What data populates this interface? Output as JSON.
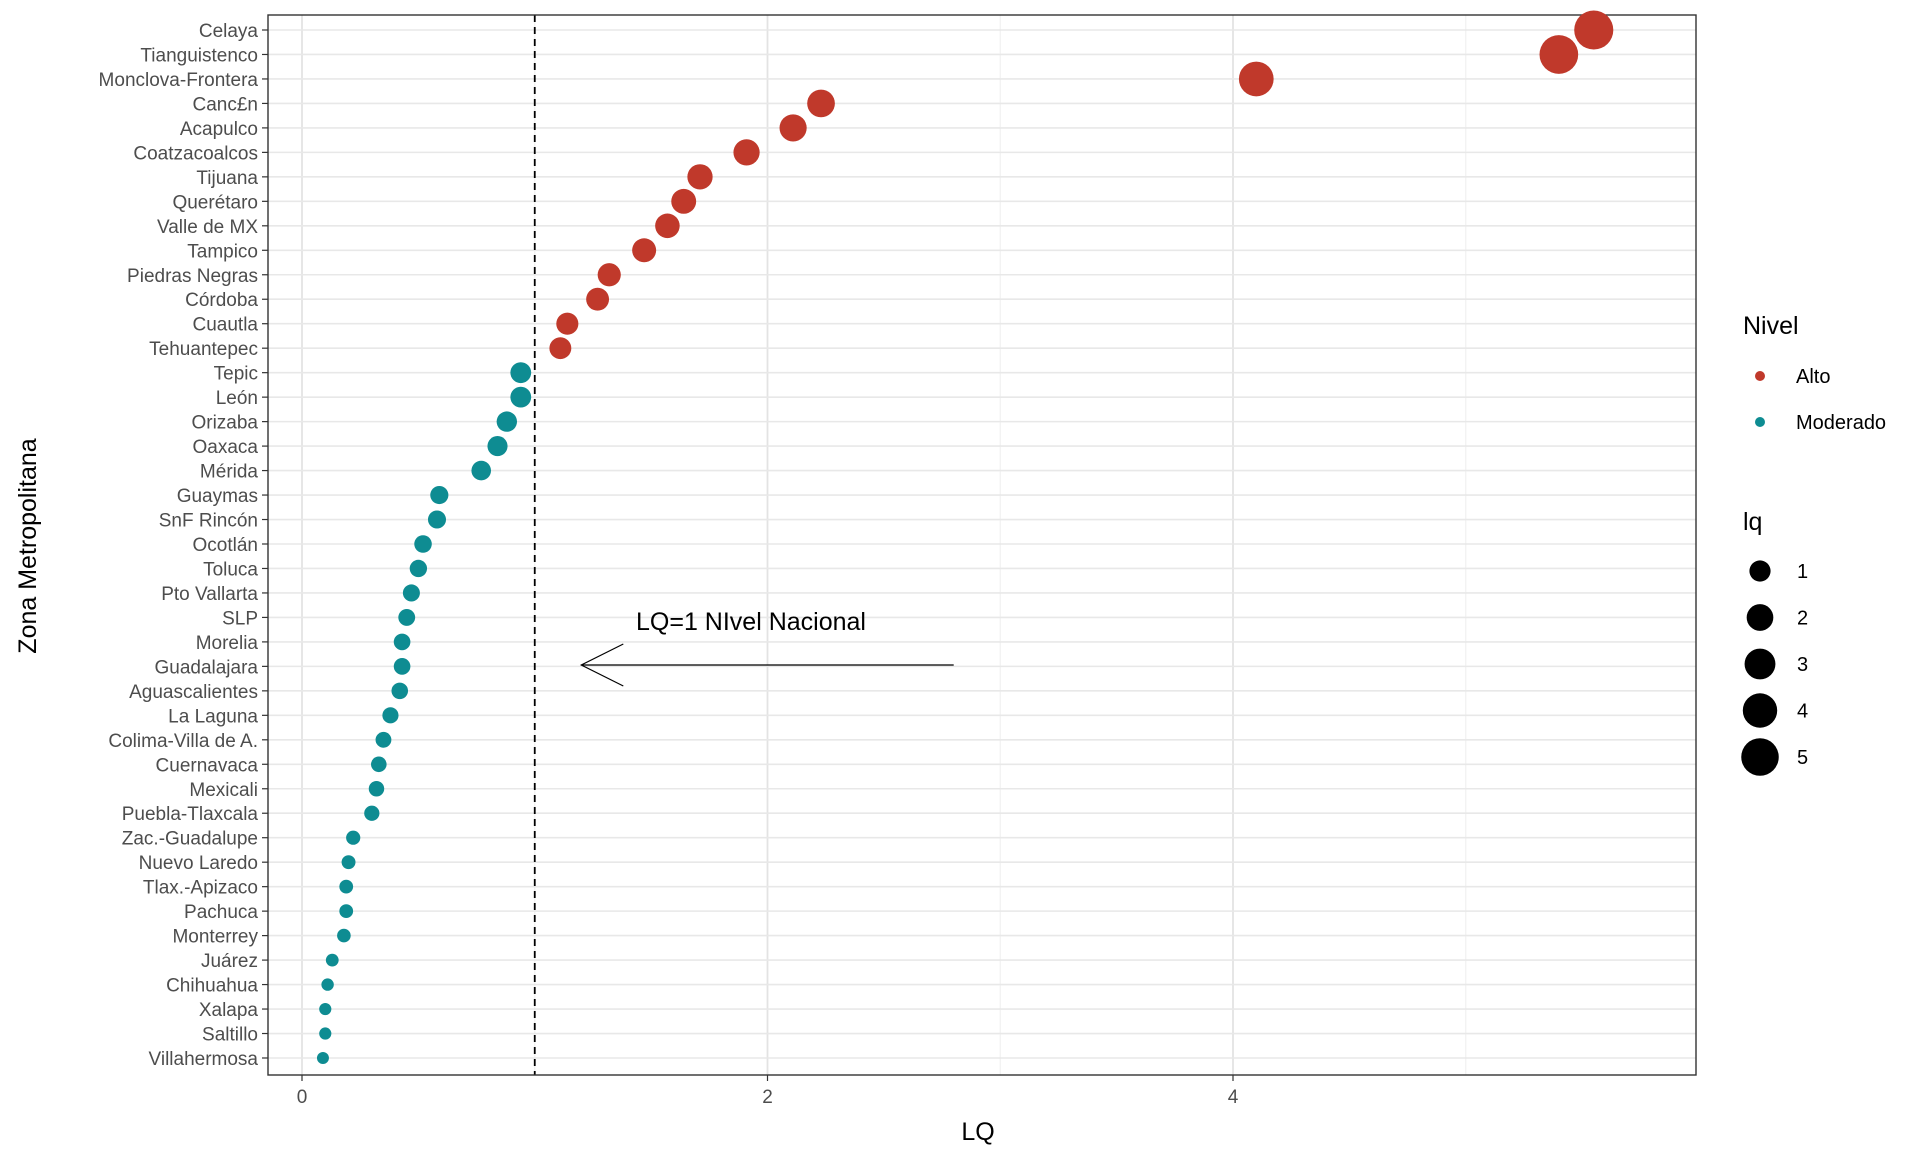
{
  "chart_data": {
    "type": "scatter",
    "xlabel": "LQ",
    "ylabel": "Zona Metropolitana",
    "xlim": [
      -0.15,
      5.8
    ],
    "x_ticks": [
      0,
      2,
      4
    ],
    "grid": true,
    "reference_line": {
      "x": 1.0,
      "style": "dashed"
    },
    "annotation": {
      "text": "LQ=1 NIvel Nacional",
      "arrow_from": 2.8,
      "arrow_to": 1.2
    },
    "colors": {
      "Alto": "#C0392B",
      "Moderado": "#0E8C92"
    },
    "legend": {
      "color_title": "Nivel",
      "color_items": [
        "Alto",
        "Moderado"
      ],
      "size_title": "lq",
      "size_items": [
        1,
        2,
        3,
        4,
        5
      ],
      "placement": "right"
    },
    "categories": [
      "Celaya",
      "Tianguistenco",
      "Monclova-Frontera",
      "Canc£n",
      "Acapulco",
      "Coatzacoalcos",
      "Tijuana",
      "Querétaro",
      "Valle de MX",
      "Tampico",
      "Piedras Negras",
      "Córdoba",
      "Cuautla",
      "Tehuantepec",
      "Tepic",
      "León",
      "Orizaba",
      "Oaxaca",
      "Mérida",
      "Guaymas",
      "SnF Rincón",
      "Ocotlán",
      "Toluca",
      "Pto Vallarta",
      "SLP",
      "Morelia",
      "Guadalajara",
      "Aguascalientes",
      "La Laguna",
      "Colima-Villa de A.",
      "Cuernavaca",
      "Mexicali",
      "Puebla-Tlaxcala",
      "Zac.-Guadalupe",
      "Nuevo Laredo",
      "Tlax.-Apizaco",
      "Pachuca",
      "Monterrey",
      "Juárez",
      "Chihuahua",
      "Xalapa",
      "Saltillo",
      "Villahermosa"
    ],
    "points": [
      {
        "name": "Celaya",
        "x": 5.55,
        "nivel": "Alto"
      },
      {
        "name": "Tianguistenco",
        "x": 5.4,
        "nivel": "Alto"
      },
      {
        "name": "Monclova-Frontera",
        "x": 4.1,
        "nivel": "Alto"
      },
      {
        "name": "Canc£n",
        "x": 2.23,
        "nivel": "Alto"
      },
      {
        "name": "Acapulco",
        "x": 2.11,
        "nivel": "Alto"
      },
      {
        "name": "Coatzacoalcos",
        "x": 1.91,
        "nivel": "Alto"
      },
      {
        "name": "Tijuana",
        "x": 1.71,
        "nivel": "Alto"
      },
      {
        "name": "Querétaro",
        "x": 1.64,
        "nivel": "Alto"
      },
      {
        "name": "Valle de MX",
        "x": 1.57,
        "nivel": "Alto"
      },
      {
        "name": "Tampico",
        "x": 1.47,
        "nivel": "Alto"
      },
      {
        "name": "Piedras Negras",
        "x": 1.32,
        "nivel": "Alto"
      },
      {
        "name": "Córdoba",
        "x": 1.27,
        "nivel": "Alto"
      },
      {
        "name": "Cuautla",
        "x": 1.14,
        "nivel": "Alto"
      },
      {
        "name": "Tehuantepec",
        "x": 1.11,
        "nivel": "Alto"
      },
      {
        "name": "Tepic",
        "x": 0.94,
        "nivel": "Moderado"
      },
      {
        "name": "León",
        "x": 0.94,
        "nivel": "Moderado"
      },
      {
        "name": "Orizaba",
        "x": 0.88,
        "nivel": "Moderado"
      },
      {
        "name": "Oaxaca",
        "x": 0.84,
        "nivel": "Moderado"
      },
      {
        "name": "Mérida",
        "x": 0.77,
        "nivel": "Moderado"
      },
      {
        "name": "Guaymas",
        "x": 0.59,
        "nivel": "Moderado"
      },
      {
        "name": "SnF Rincón",
        "x": 0.58,
        "nivel": "Moderado"
      },
      {
        "name": "Ocotlán",
        "x": 0.52,
        "nivel": "Moderado"
      },
      {
        "name": "Toluca",
        "x": 0.5,
        "nivel": "Moderado"
      },
      {
        "name": "Pto Vallarta",
        "x": 0.47,
        "nivel": "Moderado"
      },
      {
        "name": "SLP",
        "x": 0.45,
        "nivel": "Moderado"
      },
      {
        "name": "Morelia",
        "x": 0.43,
        "nivel": "Moderado"
      },
      {
        "name": "Guadalajara",
        "x": 0.43,
        "nivel": "Moderado"
      },
      {
        "name": "Aguascalientes",
        "x": 0.42,
        "nivel": "Moderado"
      },
      {
        "name": "La Laguna",
        "x": 0.38,
        "nivel": "Moderado"
      },
      {
        "name": "Colima-Villa de A.",
        "x": 0.35,
        "nivel": "Moderado"
      },
      {
        "name": "Cuernavaca",
        "x": 0.33,
        "nivel": "Moderado"
      },
      {
        "name": "Mexicali",
        "x": 0.32,
        "nivel": "Moderado"
      },
      {
        "name": "Puebla-Tlaxcala",
        "x": 0.3,
        "nivel": "Moderado"
      },
      {
        "name": "Zac.-Guadalupe",
        "x": 0.22,
        "nivel": "Moderado"
      },
      {
        "name": "Nuevo Laredo",
        "x": 0.2,
        "nivel": "Moderado"
      },
      {
        "name": "Tlax.-Apizaco",
        "x": 0.19,
        "nivel": "Moderado"
      },
      {
        "name": "Pachuca",
        "x": 0.19,
        "nivel": "Moderado"
      },
      {
        "name": "Monterrey",
        "x": 0.18,
        "nivel": "Moderado"
      },
      {
        "name": "Juárez",
        "x": 0.13,
        "nivel": "Moderado"
      },
      {
        "name": "Chihuahua",
        "x": 0.11,
        "nivel": "Moderado"
      },
      {
        "name": "Xalapa",
        "x": 0.1,
        "nivel": "Moderado"
      },
      {
        "name": "Saltillo",
        "x": 0.1,
        "nivel": "Moderado"
      },
      {
        "name": "Villahermosa",
        "x": 0.09,
        "nivel": "Moderado"
      }
    ]
  }
}
